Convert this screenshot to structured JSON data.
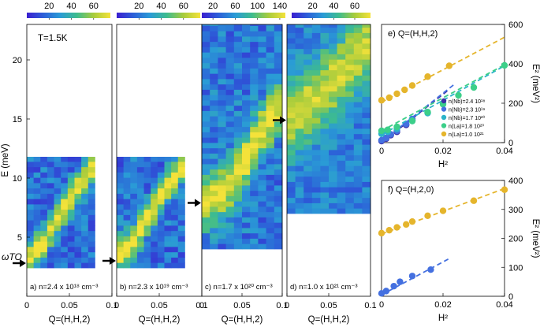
{
  "colors": {
    "viridis_stops": [
      "#3b1fd0",
      "#2c5fd8",
      "#2a9bd6",
      "#3ebc8e",
      "#a8cc3c",
      "#f4e23a"
    ],
    "series": [
      "#3d2fa6",
      "#4470e0",
      "#2bb3c9",
      "#3ccf89",
      "#e5b52c"
    ],
    "arrow": "#000000"
  },
  "chart_data": [
    {
      "type": "heatmap",
      "panel": "a",
      "annotation": "T=1.5K",
      "label": "a) n=2.4 x 10¹⁸ cm⁻³",
      "xlabel": "Q=(H,H,2)",
      "ylabel": "E (meV)",
      "xlim": [
        0,
        0.1
      ],
      "ylim": [
        0,
        23
      ],
      "xticks": [
        "0",
        "0.05",
        "0.1"
      ],
      "yticks": [
        "5",
        "10",
        "15",
        "20"
      ],
      "colorbar": {
        "range": [
          0,
          75
        ],
        "ticks": [
          "20",
          "40",
          "60"
        ]
      },
      "data_extent": {
        "x": [
          0,
          0.08
        ],
        "y": [
          2.4,
          11.8
        ]
      },
      "mode_label": "ωTO",
      "mode_energy": 2.8,
      "seed": 11,
      "ridge": [
        [
          0,
          3.0
        ],
        [
          0.02,
          4.6
        ],
        [
          0.04,
          7.0
        ],
        [
          0.06,
          9.2
        ],
        [
          0.08,
          11.2
        ]
      ],
      "ridge_sigma": 0.9,
      "ridge_amp": 55,
      "bg": 18
    },
    {
      "type": "heatmap",
      "panel": "b",
      "label": "b) n=2.3 x 10¹⁹ cm⁻³",
      "xlabel": "Q=(H,H,2)",
      "xlim": [
        0,
        0.1
      ],
      "ylim": [
        0,
        23
      ],
      "xticks": [
        "0",
        "0.05",
        "0.1"
      ],
      "colorbar": {
        "range": [
          0,
          75
        ],
        "ticks": [
          "20",
          "40",
          "60"
        ]
      },
      "data_extent": {
        "x": [
          0,
          0.08
        ],
        "y": [
          2.4,
          11.8
        ]
      },
      "arrow_energy": 3.0,
      "seed": 29,
      "ridge": [
        [
          0,
          3.4
        ],
        [
          0.02,
          4.8
        ],
        [
          0.04,
          7.0
        ],
        [
          0.06,
          9.3
        ],
        [
          0.08,
          11.3
        ]
      ],
      "ridge_sigma": 0.9,
      "ridge_amp": 58,
      "bg": 18
    },
    {
      "type": "heatmap",
      "panel": "c",
      "label": "c) n=1.7 x 10²⁰ cm⁻³",
      "xlabel": "Q=(H,H,2)",
      "xlim": [
        0,
        0.1
      ],
      "ylim": [
        0,
        23
      ],
      "xticks": [
        "0",
        "0.05",
        "0.1"
      ],
      "colorbar": {
        "range": [
          0,
          150
        ],
        "ticks": [
          "20",
          "60",
          "100",
          "140"
        ]
      },
      "data_extent": {
        "x": [
          0,
          0.1
        ],
        "y": [
          4.0,
          23.0
        ]
      },
      "arrow_energy": 7.9,
      "seed": 47,
      "ridge": [
        [
          0,
          7.9
        ],
        [
          0.03,
          9.0
        ],
        [
          0.05,
          11.0
        ],
        [
          0.07,
          13.5
        ],
        [
          0.1,
          16.5
        ]
      ],
      "ridge_sigma": 1.5,
      "ridge_amp": 110,
      "bg": 40
    },
    {
      "type": "heatmap",
      "panel": "d",
      "label": "d) n=1.0 x 10²¹ cm⁻³",
      "xlabel": "Q=(H,H,2)",
      "xlim": [
        0,
        0.1
      ],
      "ylim": [
        0,
        23
      ],
      "xticks": [
        "0",
        "0.05",
        "0.1"
      ],
      "colorbar": {
        "range": [
          0,
          75
        ],
        "ticks": [
          "20",
          "40",
          "60"
        ]
      },
      "data_extent": {
        "x": [
          0,
          0.1
        ],
        "y": [
          7.0,
          23.0
        ]
      },
      "arrow_energy": 14.9,
      "seed": 83,
      "ridge": [
        [
          0,
          15.0
        ],
        [
          0.03,
          16.5
        ],
        [
          0.06,
          18.5
        ],
        [
          0.1,
          21.5
        ]
      ],
      "ridge_sigma": 2.2,
      "ridge_amp": 45,
      "bg": 22
    },
    {
      "type": "scatter",
      "panel": "e",
      "title": "e)   Q=(H,H,2)",
      "xlabel": "H²",
      "ylabel": "E² (meV²)",
      "xlim": [
        0,
        0.04
      ],
      "ylim": [
        0,
        600
      ],
      "xticks": [
        "0",
        "0.02",
        "0.04"
      ],
      "yticks": [
        "0",
        "200",
        "400",
        "600"
      ],
      "legend_position": "center-right",
      "series": [
        {
          "name": "n(Nb)=2.4 10¹⁸",
          "x": [
            0,
            0.0015,
            0.003,
            0.005,
            0.008,
            0.01
          ],
          "y": [
            8,
            20,
            38,
            55,
            90,
            115
          ],
          "fit": [
            [
              0,
              0
            ],
            [
              0.022,
              270
            ]
          ]
        },
        {
          "name": "n(Nb)=2.3 10¹⁹",
          "x": [
            0,
            0.0015,
            0.003,
            0.005,
            0.008,
            0.01
          ],
          "y": [
            12,
            24,
            42,
            60,
            95,
            120
          ],
          "fit": [
            [
              0,
              5
            ],
            [
              0.024,
              300
            ]
          ]
        },
        {
          "name": "n(Nb)=1.7 10²⁰",
          "x": [
            0,
            0.002,
            0.005,
            0.01,
            0.015,
            0.02
          ],
          "y": [
            45,
            55,
            70,
            110,
            150,
            200
          ],
          "fit": [
            [
              0,
              40
            ],
            [
              0.04,
              390
            ]
          ]
        },
        {
          "name": "n(La)=1.8 10²⁰",
          "x": [
            0,
            0.002,
            0.005,
            0.01,
            0.015,
            0.02,
            0.025,
            0.03,
            0.04
          ],
          "y": [
            60,
            65,
            80,
            110,
            155,
            195,
            240,
            280,
            392
          ],
          "fit": [
            [
              0,
              60
            ],
            [
              0.04,
              395
            ]
          ]
        },
        {
          "name": "n(La)=1.0 10²¹",
          "x": [
            0,
            0.0025,
            0.005,
            0.0075,
            0.01,
            0.015,
            0.022
          ],
          "y": [
            215,
            228,
            248,
            268,
            290,
            335,
            390
          ],
          "fit": [
            [
              0,
              205
            ],
            [
              0.04,
              535
            ]
          ]
        }
      ]
    },
    {
      "type": "scatter",
      "panel": "f",
      "title": "f)   Q=(H,2,0)",
      "xlabel": "H²",
      "ylabel": "E² (meV²)",
      "xlim": [
        0,
        0.04
      ],
      "ylim": [
        0,
        400
      ],
      "xticks": [
        "0",
        "0.02",
        "0.04"
      ],
      "yticks": [
        "0",
        "100",
        "200",
        "300",
        "400"
      ],
      "series": [
        {
          "x": [
            0,
            0.0015,
            0.004,
            0.006,
            0.01,
            0.016
          ],
          "y": [
            10,
            18,
            35,
            50,
            70,
            92
          ],
          "fit": [
            [
              0,
              5
            ],
            [
              0.022,
              130
            ]
          ],
          "color_index": 1
        },
        {
          "x": [
            0,
            0.0025,
            0.005,
            0.008,
            0.01,
            0.015,
            0.02,
            0.03,
            0.04
          ],
          "y": [
            218,
            228,
            238,
            248,
            258,
            278,
            295,
            330,
            368
          ],
          "fit": [
            [
              0,
              215
            ],
            [
              0.04,
              372
            ]
          ],
          "color_index": 4
        }
      ]
    }
  ]
}
